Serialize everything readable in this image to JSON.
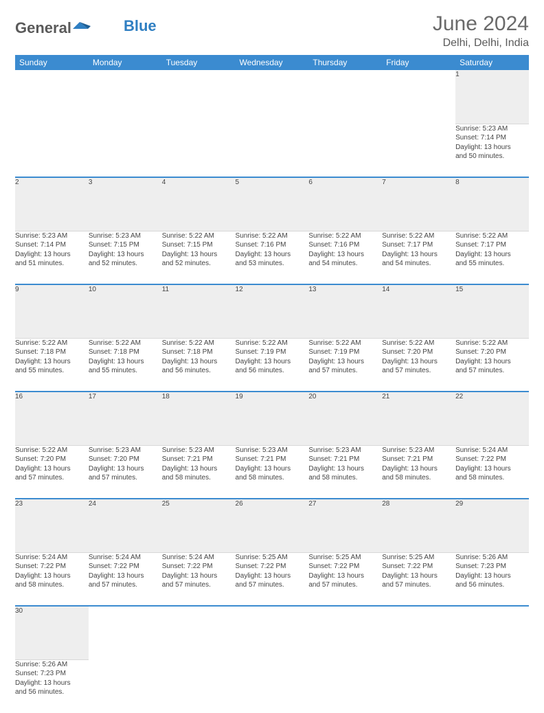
{
  "brand": {
    "part1": "General",
    "part2": "Blue"
  },
  "title": {
    "month": "June 2024",
    "location": "Delhi, Delhi, India"
  },
  "colors": {
    "header_bg": "#3b8bd0",
    "header_text": "#ffffff",
    "daynum_bg": "#eeeeee",
    "rule": "#3b8bd0",
    "text": "#444444",
    "logo_gray": "#5a5a5a",
    "logo_blue": "#2f7fc2"
  },
  "weekdays": [
    "Sunday",
    "Monday",
    "Tuesday",
    "Wednesday",
    "Thursday",
    "Friday",
    "Saturday"
  ],
  "weeks": [
    {
      "nums": [
        "",
        "",
        "",
        "",
        "",
        "",
        "1"
      ],
      "cells": [
        null,
        null,
        null,
        null,
        null,
        null,
        {
          "sunrise": "Sunrise: 5:23 AM",
          "sunset": "Sunset: 7:14 PM",
          "day1": "Daylight: 13 hours",
          "day2": "and 50 minutes."
        }
      ]
    },
    {
      "nums": [
        "2",
        "3",
        "4",
        "5",
        "6",
        "7",
        "8"
      ],
      "cells": [
        {
          "sunrise": "Sunrise: 5:23 AM",
          "sunset": "Sunset: 7:14 PM",
          "day1": "Daylight: 13 hours",
          "day2": "and 51 minutes."
        },
        {
          "sunrise": "Sunrise: 5:23 AM",
          "sunset": "Sunset: 7:15 PM",
          "day1": "Daylight: 13 hours",
          "day2": "and 52 minutes."
        },
        {
          "sunrise": "Sunrise: 5:22 AM",
          "sunset": "Sunset: 7:15 PM",
          "day1": "Daylight: 13 hours",
          "day2": "and 52 minutes."
        },
        {
          "sunrise": "Sunrise: 5:22 AM",
          "sunset": "Sunset: 7:16 PM",
          "day1": "Daylight: 13 hours",
          "day2": "and 53 minutes."
        },
        {
          "sunrise": "Sunrise: 5:22 AM",
          "sunset": "Sunset: 7:16 PM",
          "day1": "Daylight: 13 hours",
          "day2": "and 54 minutes."
        },
        {
          "sunrise": "Sunrise: 5:22 AM",
          "sunset": "Sunset: 7:17 PM",
          "day1": "Daylight: 13 hours",
          "day2": "and 54 minutes."
        },
        {
          "sunrise": "Sunrise: 5:22 AM",
          "sunset": "Sunset: 7:17 PM",
          "day1": "Daylight: 13 hours",
          "day2": "and 55 minutes."
        }
      ]
    },
    {
      "nums": [
        "9",
        "10",
        "11",
        "12",
        "13",
        "14",
        "15"
      ],
      "cells": [
        {
          "sunrise": "Sunrise: 5:22 AM",
          "sunset": "Sunset: 7:18 PM",
          "day1": "Daylight: 13 hours",
          "day2": "and 55 minutes."
        },
        {
          "sunrise": "Sunrise: 5:22 AM",
          "sunset": "Sunset: 7:18 PM",
          "day1": "Daylight: 13 hours",
          "day2": "and 55 minutes."
        },
        {
          "sunrise": "Sunrise: 5:22 AM",
          "sunset": "Sunset: 7:18 PM",
          "day1": "Daylight: 13 hours",
          "day2": "and 56 minutes."
        },
        {
          "sunrise": "Sunrise: 5:22 AM",
          "sunset": "Sunset: 7:19 PM",
          "day1": "Daylight: 13 hours",
          "day2": "and 56 minutes."
        },
        {
          "sunrise": "Sunrise: 5:22 AM",
          "sunset": "Sunset: 7:19 PM",
          "day1": "Daylight: 13 hours",
          "day2": "and 57 minutes."
        },
        {
          "sunrise": "Sunrise: 5:22 AM",
          "sunset": "Sunset: 7:20 PM",
          "day1": "Daylight: 13 hours",
          "day2": "and 57 minutes."
        },
        {
          "sunrise": "Sunrise: 5:22 AM",
          "sunset": "Sunset: 7:20 PM",
          "day1": "Daylight: 13 hours",
          "day2": "and 57 minutes."
        }
      ]
    },
    {
      "nums": [
        "16",
        "17",
        "18",
        "19",
        "20",
        "21",
        "22"
      ],
      "cells": [
        {
          "sunrise": "Sunrise: 5:22 AM",
          "sunset": "Sunset: 7:20 PM",
          "day1": "Daylight: 13 hours",
          "day2": "and 57 minutes."
        },
        {
          "sunrise": "Sunrise: 5:23 AM",
          "sunset": "Sunset: 7:20 PM",
          "day1": "Daylight: 13 hours",
          "day2": "and 57 minutes."
        },
        {
          "sunrise": "Sunrise: 5:23 AM",
          "sunset": "Sunset: 7:21 PM",
          "day1": "Daylight: 13 hours",
          "day2": "and 58 minutes."
        },
        {
          "sunrise": "Sunrise: 5:23 AM",
          "sunset": "Sunset: 7:21 PM",
          "day1": "Daylight: 13 hours",
          "day2": "and 58 minutes."
        },
        {
          "sunrise": "Sunrise: 5:23 AM",
          "sunset": "Sunset: 7:21 PM",
          "day1": "Daylight: 13 hours",
          "day2": "and 58 minutes."
        },
        {
          "sunrise": "Sunrise: 5:23 AM",
          "sunset": "Sunset: 7:21 PM",
          "day1": "Daylight: 13 hours",
          "day2": "and 58 minutes."
        },
        {
          "sunrise": "Sunrise: 5:24 AM",
          "sunset": "Sunset: 7:22 PM",
          "day1": "Daylight: 13 hours",
          "day2": "and 58 minutes."
        }
      ]
    },
    {
      "nums": [
        "23",
        "24",
        "25",
        "26",
        "27",
        "28",
        "29"
      ],
      "cells": [
        {
          "sunrise": "Sunrise: 5:24 AM",
          "sunset": "Sunset: 7:22 PM",
          "day1": "Daylight: 13 hours",
          "day2": "and 58 minutes."
        },
        {
          "sunrise": "Sunrise: 5:24 AM",
          "sunset": "Sunset: 7:22 PM",
          "day1": "Daylight: 13 hours",
          "day2": "and 57 minutes."
        },
        {
          "sunrise": "Sunrise: 5:24 AM",
          "sunset": "Sunset: 7:22 PM",
          "day1": "Daylight: 13 hours",
          "day2": "and 57 minutes."
        },
        {
          "sunrise": "Sunrise: 5:25 AM",
          "sunset": "Sunset: 7:22 PM",
          "day1": "Daylight: 13 hours",
          "day2": "and 57 minutes."
        },
        {
          "sunrise": "Sunrise: 5:25 AM",
          "sunset": "Sunset: 7:22 PM",
          "day1": "Daylight: 13 hours",
          "day2": "and 57 minutes."
        },
        {
          "sunrise": "Sunrise: 5:25 AM",
          "sunset": "Sunset: 7:22 PM",
          "day1": "Daylight: 13 hours",
          "day2": "and 57 minutes."
        },
        {
          "sunrise": "Sunrise: 5:26 AM",
          "sunset": "Sunset: 7:23 PM",
          "day1": "Daylight: 13 hours",
          "day2": "and 56 minutes."
        }
      ]
    },
    {
      "nums": [
        "30",
        "",
        "",
        "",
        "",
        "",
        ""
      ],
      "cells": [
        {
          "sunrise": "Sunrise: 5:26 AM",
          "sunset": "Sunset: 7:23 PM",
          "day1": "Daylight: 13 hours",
          "day2": "and 56 minutes."
        },
        null,
        null,
        null,
        null,
        null,
        null
      ]
    }
  ]
}
